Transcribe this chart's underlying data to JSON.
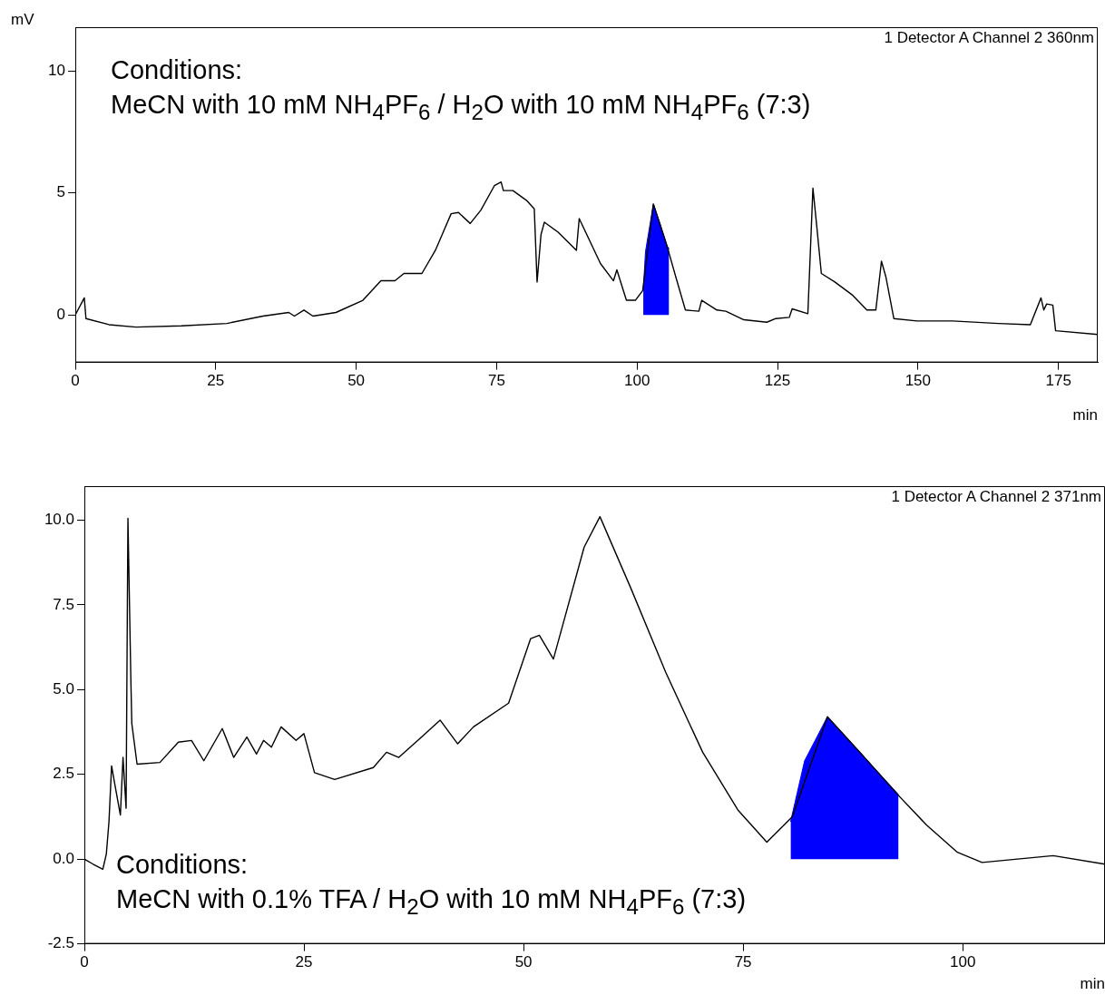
{
  "chart_data": [
    {
      "type": "line",
      "ylabel": "mV",
      "xlabel": "min",
      "xlim": [
        0,
        182
      ],
      "ylim": [
        -1.95,
        11.8
      ],
      "xticks": [
        0,
        25,
        50,
        75,
        100,
        125,
        150,
        175
      ],
      "yticks": [
        0,
        5,
        10
      ],
      "grid": false,
      "legend": false,
      "marker": "none",
      "annotations": [
        "1 Detector A Channel 2 360nm",
        "Conditions:",
        "MeCN with 10 mM NH$_{4}$PF$_{6}$ / H$_{2}$O with 10 mM NH$_{4}$PF$_{6}$ (7:3)"
      ],
      "series": [
        {
          "color": "#000000",
          "x": [
            0,
            1.6,
            1.9,
            6,
            10.8,
            18.9,
            27,
            33.4,
            38,
            39,
            40.7,
            42.3,
            46.4,
            51.2,
            54.4,
            56.9,
            58.5,
            61.7,
            64.1,
            66.9,
            68.2,
            70.3,
            72.2,
            74.6,
            75.8,
            76.2,
            77.9,
            80.3,
            81.7,
            82.2,
            82.9,
            83.5,
            85.9,
            89.2,
            89.7,
            93.5,
            95.8,
            96.4,
            98.1,
            99.7,
            101,
            102.9,
            105.3,
            106.9,
            108.6,
            111,
            111.5,
            114.2,
            115.8,
            119,
            123.1,
            124.7,
            127.1,
            127.6,
            130.4,
            131.3,
            132,
            132.8,
            135.2,
            138.4,
            140.9,
            142.5,
            143.5,
            144.3,
            145.7,
            149.8,
            156.2,
            164.3,
            170,
            171.9,
            172.4,
            172.9,
            174,
            174.5,
            182
          ],
          "values": [
            0,
            0.7,
            -0.15,
            -0.4,
            -0.5,
            -0.45,
            -0.35,
            -0.05,
            0.1,
            -0.05,
            0.2,
            -0.05,
            0.1,
            0.6,
            1.4,
            1.4,
            1.7,
            1.7,
            2.65,
            4.15,
            4.2,
            3.75,
            4.3,
            5.3,
            5.45,
            5.1,
            5.1,
            4.7,
            4.35,
            1.35,
            3.3,
            3.8,
            3.4,
            2.65,
            3.95,
            2.1,
            1.4,
            1.85,
            0.6,
            0.6,
            1.0,
            4.55,
            2.85,
            1.55,
            0.2,
            0.15,
            0.6,
            0.2,
            0.15,
            -0.2,
            -0.3,
            -0.15,
            -0.1,
            0.25,
            0.05,
            5.2,
            3.6,
            1.7,
            1.35,
            0.8,
            0.2,
            0.2,
            2.2,
            1.55,
            -0.15,
            -0.25,
            -0.25,
            -0.35,
            -0.4,
            0.7,
            0.2,
            0.45,
            0.4,
            -0.65,
            -0.8
          ]
        },
        {
          "type": "area",
          "color": "#0000ff",
          "x": [
            101.1,
            101.5,
            102.9,
            104,
            105.3,
            105.7
          ],
          "values": [
            1.0,
            2.6,
            4.55,
            3.8,
            2.85,
            2.7
          ]
        }
      ]
    },
    {
      "type": "line",
      "xlabel": "min",
      "xlim": [
        0,
        116.2
      ],
      "ylim": [
        -2.5,
        11
      ],
      "xticks": [
        0,
        25,
        50,
        75,
        100
      ],
      "yticks": [
        {
          "value": -2.5,
          "label": "-2.5"
        },
        {
          "value": 0,
          "label": "0.0"
        },
        {
          "value": 2.5,
          "label": "2.5"
        },
        {
          "value": 5,
          "label": "5.0"
        },
        {
          "value": 7.5,
          "label": "7.5"
        },
        {
          "value": 10,
          "label": "10.0"
        }
      ],
      "grid": false,
      "legend": false,
      "marker": "none",
      "annotations": [
        "1 Detector A Channel 2 371nm",
        "Conditions:",
        "MeCN with 0.1% TFA / H$_{2}$O with 10 mM NH$_{4}$PF$_{6}$ (7:3)"
      ],
      "series": [
        {
          "color": "#000000",
          "x": [
            0,
            1.0,
            2.1,
            2.5,
            2.8,
            3.1,
            3.4,
            4.1,
            4.4,
            4.75,
            4.96,
            5.3,
            5.4,
            6.0,
            8.6,
            10.7,
            12.2,
            13.6,
            15.7,
            17.0,
            18.5,
            19.6,
            20.4,
            21.3,
            22.4,
            24.1,
            25.0,
            26.2,
            28.5,
            32.9,
            34.4,
            35.8,
            38.4,
            40.5,
            42.5,
            44.3,
            48.3,
            50.8,
            51.8,
            53.4,
            56.9,
            58.7,
            62.2,
            66.2,
            70.4,
            74.4,
            77.7,
            80.6,
            84.6,
            88.3,
            92.6,
            95.9,
            99.4,
            102.2,
            110.3,
            116.2
          ],
          "values": [
            0,
            -0.15,
            -0.3,
            0.15,
            1.1,
            2.75,
            2.3,
            1.3,
            3.0,
            1.5,
            10.05,
            5.2,
            4.0,
            2.8,
            2.85,
            3.45,
            3.5,
            2.9,
            3.85,
            3.0,
            3.6,
            3.1,
            3.5,
            3.3,
            3.9,
            3.5,
            3.7,
            2.55,
            2.35,
            2.7,
            3.15,
            3.0,
            3.6,
            4.1,
            3.4,
            3.9,
            4.6,
            6.5,
            6.6,
            5.9,
            9.2,
            10.1,
            8.0,
            5.5,
            3.15,
            1.45,
            0.5,
            1.25,
            4.2,
            3.15,
            1.9,
            1.0,
            0.2,
            -0.1,
            0.1,
            -0.15
          ]
        },
        {
          "type": "area",
          "color": "#0000ff",
          "x": [
            80.4,
            82,
            84.6,
            88.3,
            92.7
          ],
          "values": [
            1.1,
            2.9,
            4.2,
            3.15,
            1.9
          ]
        }
      ]
    }
  ]
}
